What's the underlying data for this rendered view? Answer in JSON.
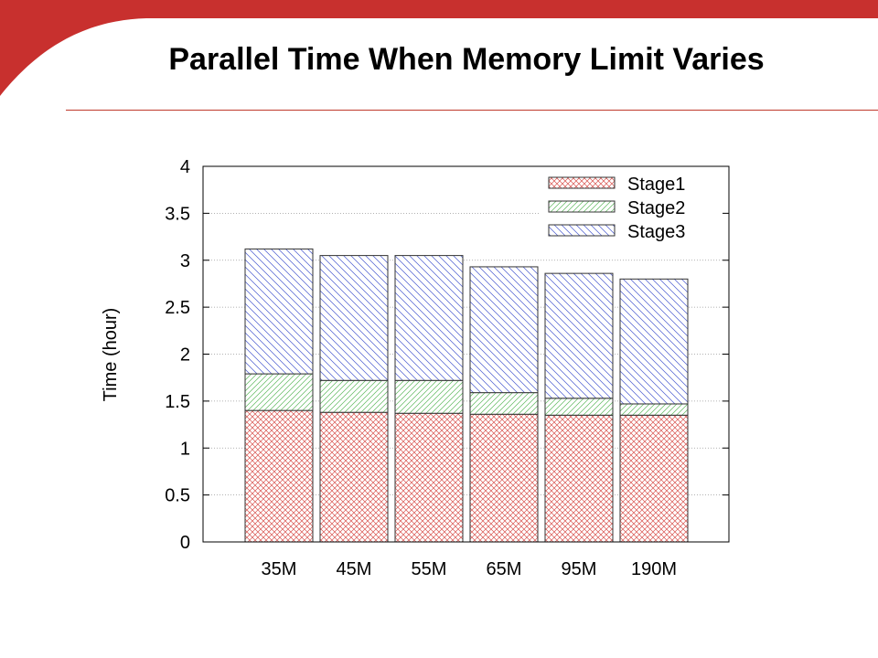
{
  "slide": {
    "title": "Parallel Time When Memory Limit Varies",
    "accent_color": "#c8302e",
    "rule_color": "#c0392b"
  },
  "chart_data": {
    "type": "bar",
    "stacked": true,
    "categories": [
      "35M",
      "45M",
      "55M",
      "65M",
      "95M",
      "190M"
    ],
    "series": [
      {
        "name": "Stage1",
        "values": [
          1.4,
          1.38,
          1.37,
          1.36,
          1.35,
          1.35
        ],
        "color": "#d9534f",
        "pattern": "crosshatch"
      },
      {
        "name": "Stage2",
        "values": [
          0.39,
          0.34,
          0.35,
          0.23,
          0.18,
          0.12
        ],
        "color": "#5cb85c",
        "pattern": "diagonal-up"
      },
      {
        "name": "Stage3",
        "values": [
          1.33,
          1.33,
          1.33,
          1.34,
          1.33,
          1.33
        ],
        "color": "#4a5bd0",
        "pattern": "diagonal-down"
      }
    ],
    "title": "",
    "xlabel": "",
    "ylabel": "Time (hour)",
    "ylim": [
      0,
      4
    ],
    "yticks": [
      "0",
      "0.5",
      "1",
      "1.5",
      "2",
      "2.5",
      "3",
      "3.5",
      "4"
    ],
    "grid": true,
    "legend_position": "top-right"
  }
}
